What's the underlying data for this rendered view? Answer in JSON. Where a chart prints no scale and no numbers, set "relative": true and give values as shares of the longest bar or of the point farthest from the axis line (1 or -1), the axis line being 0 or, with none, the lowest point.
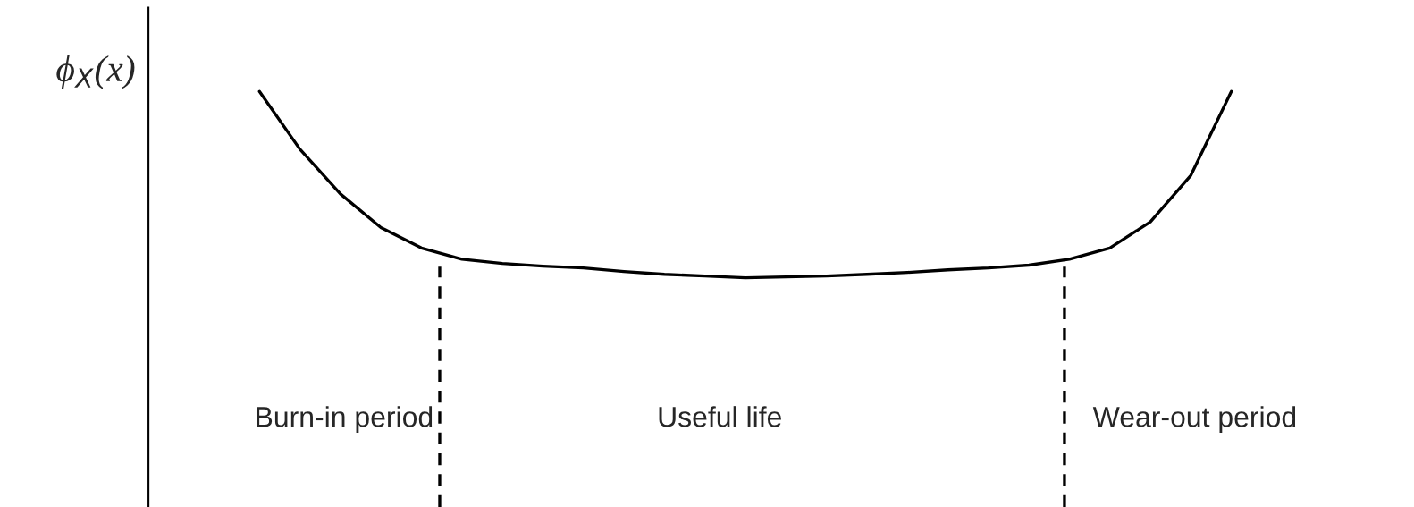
{
  "chart_data": {
    "type": "line",
    "relative": true,
    "ylabel": "ϕ$_{X}$(x)",
    "categories": [
      null,
      null,
      null,
      null,
      null,
      null,
      null,
      null,
      null,
      null,
      null,
      null,
      null,
      null,
      null,
      null,
      null,
      null,
      null,
      null,
      null,
      null,
      null,
      null,
      null
    ],
    "series": [
      {
        "color": "#000000",
        "values": [
          1.0,
          0.69,
          0.45,
          0.27,
          0.16,
          0.1,
          0.077,
          0.063,
          0.053,
          0.034,
          0.019,
          0.01,
          0.0,
          0.005,
          0.01,
          0.019,
          0.029,
          0.043,
          0.053,
          0.068,
          0.1,
          0.16,
          0.3,
          0.55,
          1.0
        ]
      }
    ],
    "annotations": [
      "Burn-in period",
      "Useful life",
      "Wear-out period"
    ],
    "grid": false,
    "marker": "none",
    "line_style": "solid"
  }
}
